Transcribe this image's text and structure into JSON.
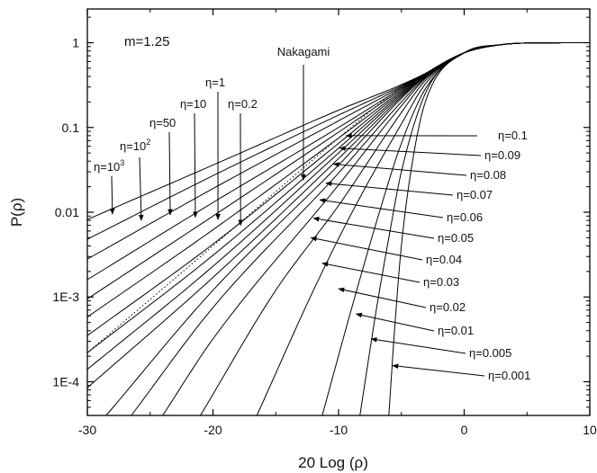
{
  "chart_data": {
    "type": "line",
    "title": "",
    "xlabel": "20 Log (ρ)",
    "ylabel": "P(ρ)",
    "xlim": [
      -30,
      10
    ],
    "ylim": [
      4e-05,
      2.5
    ],
    "y_scale": "log",
    "grid": false,
    "x_ticks": [
      {
        "value": -30,
        "label": "-30"
      },
      {
        "value": -20,
        "label": "-20"
      },
      {
        "value": -10,
        "label": "-10"
      },
      {
        "value": 0,
        "label": "0"
      },
      {
        "value": 10,
        "label": "10"
      }
    ],
    "y_ticks": [
      {
        "value": 0.0001,
        "label": "1E-4"
      },
      {
        "value": 0.001,
        "label": "1E-3"
      },
      {
        "value": 0.01,
        "label": "0.01"
      },
      {
        "value": 0.1,
        "label": "0.1"
      },
      {
        "value": 1,
        "label": "1"
      }
    ],
    "parameter_label": "m=1.25",
    "reference_curve": {
      "label": "Nakagami",
      "style": "dotted",
      "points": [
        [
          -30,
          0.00022
        ],
        [
          -20,
          0.004
        ],
        [
          -10,
          0.075
        ],
        [
          -5,
          0.3
        ],
        [
          -3,
          0.44
        ],
        [
          0,
          0.76
        ],
        [
          3,
          0.95
        ],
        [
          6,
          0.995
        ],
        [
          10,
          1.0
        ]
      ]
    },
    "series": [
      {
        "label": "η=10³",
        "points": [
          [
            -30,
            0.0082
          ],
          [
            -20,
            0.036
          ],
          [
            -10,
            0.16
          ],
          [
            -5,
            0.32
          ],
          [
            -3,
            0.44
          ],
          [
            0,
            0.76
          ],
          [
            3,
            0.95
          ],
          [
            6,
            0.995
          ],
          [
            10,
            1.0
          ]
        ]
      },
      {
        "label": "η=10²",
        "points": [
          [
            -30,
            0.0048
          ],
          [
            -20,
            0.027
          ],
          [
            -10,
            0.14
          ],
          [
            -5,
            0.31
          ],
          [
            -3,
            0.44
          ],
          [
            0,
            0.76
          ],
          [
            3,
            0.95
          ],
          [
            6,
            0.995
          ],
          [
            10,
            1.0
          ]
        ]
      },
      {
        "label": "η=50",
        "points": [
          [
            -30,
            0.0028
          ],
          [
            -20,
            0.019
          ],
          [
            -10,
            0.12
          ],
          [
            -5,
            0.3
          ],
          [
            -3,
            0.44
          ],
          [
            0,
            0.76
          ],
          [
            3,
            0.95
          ],
          [
            6,
            0.995
          ],
          [
            10,
            1.0
          ]
        ]
      },
      {
        "label": "η=10",
        "points": [
          [
            -30,
            0.0016
          ],
          [
            -20,
            0.013
          ],
          [
            -10,
            0.1
          ],
          [
            -5,
            0.29
          ],
          [
            -3,
            0.44
          ],
          [
            0,
            0.76
          ],
          [
            3,
            0.95
          ],
          [
            6,
            0.995
          ],
          [
            10,
            1.0
          ]
        ]
      },
      {
        "label": "η=1",
        "points": [
          [
            -30,
            0.00095
          ],
          [
            -20,
            0.009
          ],
          [
            -10,
            0.088
          ],
          [
            -5,
            0.28
          ],
          [
            -3,
            0.44
          ],
          [
            0,
            0.76
          ],
          [
            3,
            0.95
          ],
          [
            6,
            0.995
          ],
          [
            10,
            1.0
          ]
        ]
      },
      {
        "label": "η=0.2",
        "points": [
          [
            -30,
            0.00058
          ],
          [
            -20,
            0.0062
          ],
          [
            -10,
            0.075
          ],
          [
            -5,
            0.27
          ],
          [
            -3,
            0.44
          ],
          [
            0,
            0.76
          ],
          [
            3,
            0.95
          ],
          [
            6,
            0.995
          ],
          [
            10,
            1.0
          ]
        ]
      },
      {
        "label": "η=0.1",
        "points": [
          [
            -30,
            0.00035
          ],
          [
            -20,
            0.0042
          ],
          [
            -10,
            0.065
          ],
          [
            -5,
            0.26
          ],
          [
            -3,
            0.43
          ],
          [
            0,
            0.76
          ],
          [
            3,
            0.95
          ],
          [
            6,
            0.995
          ],
          [
            10,
            1.0
          ]
        ]
      },
      {
        "label": "η=0.09",
        "points": [
          [
            -30,
            0.00022
          ],
          [
            -20,
            0.0031
          ],
          [
            -10,
            0.057
          ],
          [
            -5,
            0.25
          ],
          [
            -3,
            0.43
          ],
          [
            0,
            0.76
          ],
          [
            3,
            0.95
          ],
          [
            6,
            0.995
          ],
          [
            10,
            1.0
          ]
        ]
      },
      {
        "label": "η=0.08",
        "points": [
          [
            -30,
            0.00014
          ],
          [
            -20,
            0.0023
          ],
          [
            -10,
            0.05
          ],
          [
            -5,
            0.24
          ],
          [
            -3,
            0.42
          ],
          [
            0,
            0.76
          ],
          [
            3,
            0.95
          ],
          [
            6,
            0.995
          ],
          [
            10,
            1.0
          ]
        ]
      },
      {
        "label": "η=0.07",
        "points": [
          [
            -30,
            8.5e-05
          ],
          [
            -20,
            0.0017
          ],
          [
            -10,
            0.043
          ],
          [
            -5,
            0.23
          ],
          [
            -3,
            0.42
          ],
          [
            0,
            0.76
          ],
          [
            3,
            0.95
          ],
          [
            6,
            0.995
          ],
          [
            10,
            1.0
          ]
        ]
      },
      {
        "label": "η=0.06",
        "points": [
          [
            -28.5,
            4e-05
          ],
          [
            -20,
            0.0012
          ],
          [
            -10,
            0.036
          ],
          [
            -5,
            0.22
          ],
          [
            -3,
            0.41
          ],
          [
            0,
            0.76
          ],
          [
            3,
            0.95
          ],
          [
            6,
            0.995
          ],
          [
            10,
            1.0
          ]
        ]
      },
      {
        "label": "η=0.05",
        "points": [
          [
            -26.5,
            4e-05
          ],
          [
            -20,
            0.00075
          ],
          [
            -10,
            0.029
          ],
          [
            -5,
            0.2
          ],
          [
            -3,
            0.4
          ],
          [
            0,
            0.76
          ],
          [
            3,
            0.95
          ],
          [
            6,
            0.995
          ],
          [
            10,
            1.0
          ]
        ]
      },
      {
        "label": "η=0.04",
        "points": [
          [
            -24,
            4e-05
          ],
          [
            -20,
            0.00032
          ],
          [
            -10,
            0.021
          ],
          [
            -5,
            0.18
          ],
          [
            -3,
            0.39
          ],
          [
            0,
            0.76
          ],
          [
            3,
            0.95
          ],
          [
            6,
            0.995
          ],
          [
            10,
            1.0
          ]
        ]
      },
      {
        "label": "η=0.03",
        "points": [
          [
            -21,
            4e-05
          ],
          [
            -15,
            0.0012
          ],
          [
            -10,
            0.012
          ],
          [
            -5,
            0.15
          ],
          [
            -3,
            0.37
          ],
          [
            0,
            0.76
          ],
          [
            3,
            0.95
          ],
          [
            6,
            0.995
          ],
          [
            10,
            1.0
          ]
        ]
      },
      {
        "label": "η=0.02",
        "points": [
          [
            -16.5,
            4e-05
          ],
          [
            -12,
            0.0012
          ],
          [
            -9,
            0.0095
          ],
          [
            -5,
            0.11
          ],
          [
            -3,
            0.34
          ],
          [
            0,
            0.76
          ],
          [
            3,
            0.95
          ],
          [
            6,
            0.995
          ],
          [
            10,
            1.0
          ]
        ]
      },
      {
        "label": "η=0.01",
        "points": [
          [
            -11.3,
            4e-05
          ],
          [
            -9,
            0.0007
          ],
          [
            -7,
            0.0075
          ],
          [
            -5,
            0.065
          ],
          [
            -3,
            0.3
          ],
          [
            0,
            0.76
          ],
          [
            3,
            0.95
          ],
          [
            6,
            0.995
          ],
          [
            10,
            1.0
          ]
        ]
      },
      {
        "label": "η=0.005",
        "points": [
          [
            -8.3,
            4e-05
          ],
          [
            -7,
            0.0007
          ],
          [
            -6,
            0.005
          ],
          [
            -5,
            0.03
          ],
          [
            -3,
            0.27
          ],
          [
            0,
            0.76
          ],
          [
            3,
            0.95
          ],
          [
            6,
            0.995
          ],
          [
            10,
            1.0
          ]
        ]
      },
      {
        "label": "η=0.001",
        "points": [
          [
            -6.0,
            4e-05
          ],
          [
            -5.5,
            0.0005
          ],
          [
            -5,
            0.004
          ],
          [
            -4,
            0.05
          ],
          [
            -3,
            0.22
          ],
          [
            0,
            0.76
          ],
          [
            3,
            0.95
          ],
          [
            6,
            0.995
          ],
          [
            10,
            1.0
          ]
        ]
      }
    ],
    "annotations": [
      {
        "label": "m=1.25"
      },
      {
        "label": "Nakagami",
        "arrow_to": [
          -12.8,
          0.024
        ]
      },
      {
        "label": "η=10³",
        "arrow_to": [
          -28,
          0.0095
        ]
      },
      {
        "label": "η=10²",
        "arrow_to": [
          -25.7,
          0.008
        ]
      },
      {
        "label": "η=50",
        "arrow_to": [
          -23.4,
          0.0093
        ]
      },
      {
        "label": "η=10",
        "arrow_to": [
          -21.4,
          0.0087
        ]
      },
      {
        "label": "η=1",
        "arrow_to": [
          -19.6,
          0.0082
        ]
      },
      {
        "label": "η=0.2",
        "arrow_to": [
          -17.8,
          0.007
        ]
      },
      {
        "label": "η=0.1",
        "arrow_to": [
          -9.4,
          0.08
        ]
      },
      {
        "label": "η=0.09",
        "arrow_to": [
          -9.9,
          0.057
        ]
      },
      {
        "label": "η=0.08",
        "arrow_to": [
          -10.4,
          0.037
        ]
      },
      {
        "label": "η=0.07",
        "arrow_to": [
          -11.0,
          0.022
        ]
      },
      {
        "label": "η=0.06",
        "arrow_to": [
          -11.5,
          0.014
        ]
      },
      {
        "label": "η=0.05",
        "arrow_to": [
          -12.0,
          0.0085
        ]
      },
      {
        "label": "η=0.04",
        "arrow_to": [
          -12.2,
          0.005
        ]
      },
      {
        "label": "η=0.03",
        "arrow_to": [
          -11.3,
          0.0025
        ]
      },
      {
        "label": "η=0.02",
        "arrow_to": [
          -10.0,
          0.00125
        ]
      },
      {
        "label": "η=0.01",
        "arrow_to": [
          -8.6,
          0.00063
        ]
      },
      {
        "label": "η=0.005",
        "arrow_to": [
          -7.4,
          0.00032
        ]
      },
      {
        "label": "η=0.001",
        "arrow_to": [
          -5.7,
          0.000155
        ]
      }
    ]
  }
}
